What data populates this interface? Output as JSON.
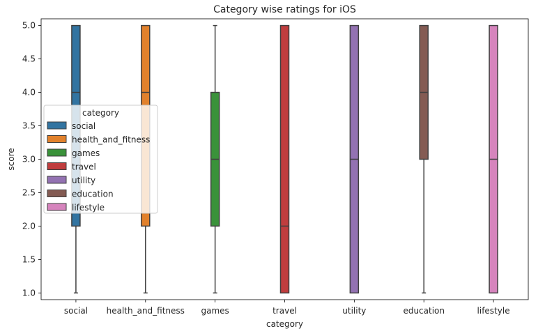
{
  "chart_data": {
    "type": "box",
    "title": "Category wise ratings for iOS",
    "xlabel": "category",
    "ylabel": "score",
    "ylim": [
      0.9,
      5.1
    ],
    "yticks": [
      1.0,
      1.5,
      2.0,
      2.5,
      3.0,
      3.5,
      4.0,
      4.5,
      5.0
    ],
    "legend": {
      "title": "category",
      "placement": "center-left"
    },
    "categories": [
      "social",
      "health_and_fitness",
      "games",
      "travel",
      "utility",
      "education",
      "lifestyle"
    ],
    "series": [
      {
        "name": "social",
        "color": "#3274a1",
        "min": 1.0,
        "q1": 2.0,
        "median": 4.0,
        "q3": 5.0,
        "max": 5.0
      },
      {
        "name": "health_and_fitness",
        "color": "#e1812c",
        "min": 1.0,
        "q1": 2.0,
        "median": 4.0,
        "q3": 5.0,
        "max": 5.0
      },
      {
        "name": "games",
        "color": "#3a923a",
        "min": 1.0,
        "q1": 2.0,
        "median": 3.0,
        "q3": 4.0,
        "max": 5.0
      },
      {
        "name": "travel",
        "color": "#c03d3e",
        "min": 1.0,
        "q1": 1.0,
        "median": 2.0,
        "q3": 5.0,
        "max": 5.0
      },
      {
        "name": "utility",
        "color": "#9372b2",
        "min": 1.0,
        "q1": 1.0,
        "median": 3.0,
        "q3": 5.0,
        "max": 5.0
      },
      {
        "name": "education",
        "color": "#845b53",
        "min": 1.0,
        "q1": 3.0,
        "median": 4.0,
        "q3": 5.0,
        "max": 5.0
      },
      {
        "name": "lifestyle",
        "color": "#d684bd",
        "min": 1.0,
        "q1": 1.0,
        "median": 3.0,
        "q3": 5.0,
        "max": 5.0
      }
    ]
  }
}
